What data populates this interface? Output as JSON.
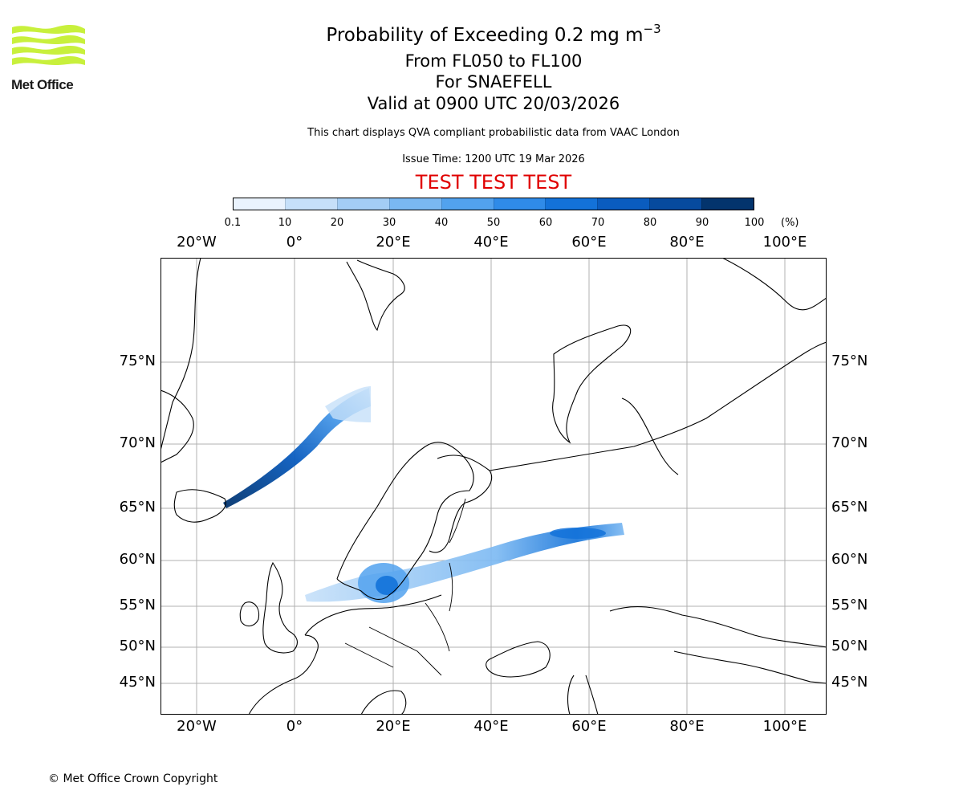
{
  "logo": {
    "text": "Met Office",
    "colors": {
      "waves": "#c8f03c",
      "text": "#1a1a1a"
    }
  },
  "header": {
    "title_main": "Probability of Exceeding 0.2 mg m",
    "title_exp": "−3",
    "line2": "From FL050 to FL100",
    "line3": "For SNAEFELL",
    "line4": "Valid at 0900 UTC 20/03/2026",
    "note": "This chart displays QVA compliant probabilistic data from VAAC London",
    "issue": "Issue Time: 1200 UTC 19 Mar 2026",
    "test_banner": "TEST TEST TEST"
  },
  "colorbar": {
    "ticks": [
      "0.1",
      "10",
      "20",
      "30",
      "40",
      "50",
      "60",
      "70",
      "80",
      "90",
      "100"
    ],
    "unit": "(%)",
    "colors": [
      "#eaf3fd",
      "#c6e0f9",
      "#a3cdf5",
      "#7ab8f2",
      "#52a2ee",
      "#2f8be8",
      "#1372d9",
      "#0a5cbf",
      "#064a9e",
      "#03346d"
    ]
  },
  "axes": {
    "lon_labels": [
      "20°W",
      "0°",
      "20°E",
      "40°E",
      "60°E",
      "80°E",
      "100°E"
    ],
    "lat_labels": [
      "75°N",
      "70°N",
      "65°N",
      "60°N",
      "55°N",
      "50°N",
      "45°N"
    ]
  },
  "footer": {
    "copyright": "© Met Office Crown Copyright"
  }
}
